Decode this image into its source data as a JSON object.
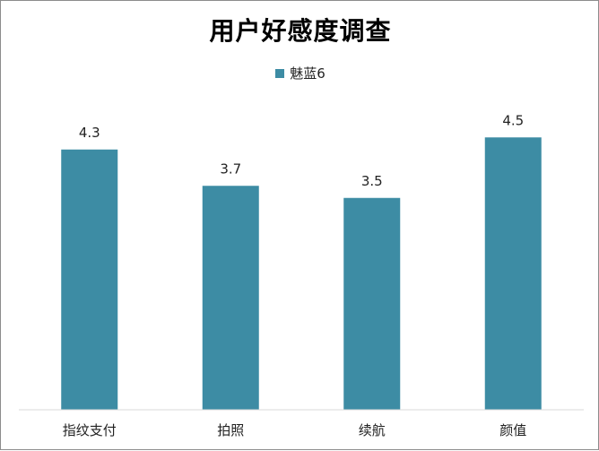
{
  "chart_data": {
    "type": "bar",
    "title": "用户好感度调查",
    "categories": [
      "指纹支付",
      "拍照",
      "续航",
      "颜值"
    ],
    "series": [
      {
        "name": "魅蓝6",
        "values": [
          4.3,
          3.7,
          3.5,
          4.5
        ],
        "color": "#3d8ca4"
      }
    ],
    "ylim": [
      0,
      5
    ],
    "grid": false,
    "legend_position": "top"
  }
}
